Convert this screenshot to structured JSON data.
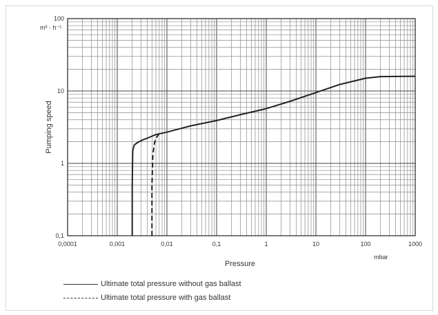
{
  "chart_data": {
    "type": "line",
    "title": "",
    "xlabel": "Pressure",
    "xunit": "mbar",
    "ylabel": "Pumping speed",
    "yunit": "m³ · h⁻¹",
    "xscale": "log",
    "yscale": "log",
    "xlim": [
      0.0001,
      1000
    ],
    "ylim": [
      0.1,
      100
    ],
    "xticks": [
      "0,0001",
      "0,001",
      "0,01",
      "0,1",
      "1",
      "10",
      "100",
      "1000"
    ],
    "yticks": [
      "0,1",
      "1",
      "10",
      "100"
    ],
    "grid": true,
    "legend_position": "bottom",
    "series": [
      {
        "name": "Ultimate total pressure without gas ballast",
        "style": "solid",
        "color": "#222222",
        "x": [
          0.002,
          0.002,
          0.00205,
          0.0022,
          0.0026,
          0.0032,
          0.0045,
          0.006,
          0.01,
          0.03,
          0.1,
          0.3,
          1,
          3,
          10,
          30,
          100,
          200,
          1000
        ],
        "y": [
          0.1,
          0.5,
          1.5,
          1.8,
          1.95,
          2.1,
          2.3,
          2.5,
          2.7,
          3.3,
          3.9,
          4.7,
          5.7,
          7.2,
          9.5,
          12.3,
          15.0,
          15.8,
          16.0
        ]
      },
      {
        "name": "Ultimate total pressure with gas ballast",
        "style": "dashed",
        "color": "#222222",
        "x": [
          0.005,
          0.005,
          0.0052,
          0.0056,
          0.006,
          0.007
        ],
        "y": [
          0.1,
          0.5,
          1.3,
          1.9,
          2.2,
          2.6
        ]
      }
    ]
  }
}
